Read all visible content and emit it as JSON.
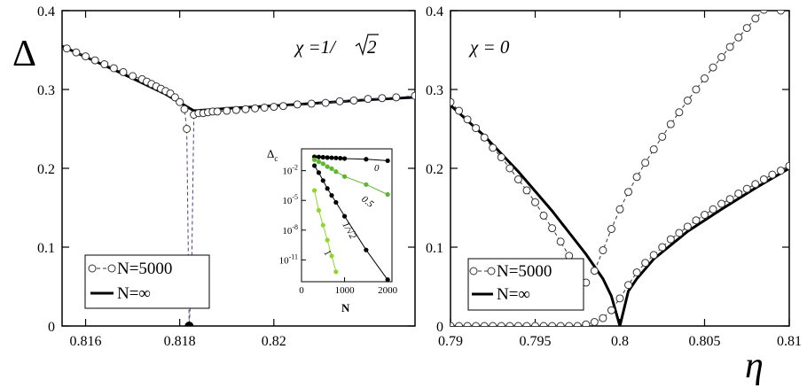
{
  "y_axis_label": "Δ",
  "x_axis_label": "η",
  "chart_data": [
    {
      "type": "line",
      "panel": "left",
      "annotation_prefix": "χ =1/",
      "annotation_radicand": "2",
      "xlim": [
        0.8155,
        0.823
      ],
      "ylim": [
        0,
        0.4
      ],
      "xticks": [
        0.816,
        0.818,
        0.82
      ],
      "xtick_labels": [
        "0.816",
        "0.818",
        "0.82"
      ],
      "yticks": [
        0,
        0.1,
        0.2,
        0.3,
        0.4
      ],
      "ytick_labels": [
        "0",
        "0.1",
        "0.2",
        "0.3",
        "0.4"
      ],
      "legend": [
        "N=5000",
        "N=∞"
      ],
      "series": [
        {
          "name": "N=∞",
          "style": "solid-thick",
          "x": [
            0.8155,
            0.8162,
            0.817,
            0.8177,
            0.8183,
            0.819,
            0.8205,
            0.822,
            0.823
          ],
          "y": [
            0.355,
            0.336,
            0.314,
            0.294,
            0.273,
            0.276,
            0.281,
            0.287,
            0.29
          ]
        },
        {
          "name": "N=5000",
          "style": "dashed-markers",
          "x": [
            0.8156,
            0.8158,
            0.816,
            0.8162,
            0.8164,
            0.8166,
            0.8168,
            0.817,
            0.8172,
            0.8173,
            0.8174,
            0.8175,
            0.8176,
            0.8177,
            0.8178,
            0.8179,
            0.818,
            0.8181,
            0.81815,
            0.8182,
            0.81825,
            0.8183,
            0.8184,
            0.8185,
            0.8186,
            0.8187,
            0.8188,
            0.819,
            0.8192,
            0.8194,
            0.8196,
            0.8198,
            0.82,
            0.8202,
            0.8205,
            0.8208,
            0.8211,
            0.8214,
            0.8217,
            0.822,
            0.8223,
            0.8226,
            0.823
          ],
          "y": [
            0.352,
            0.347,
            0.342,
            0.337,
            0.332,
            0.327,
            0.322,
            0.317,
            0.313,
            0.31,
            0.307,
            0.304,
            0.301,
            0.298,
            0.295,
            0.29,
            0.284,
            0.275,
            0.25,
            0.0,
            0.055,
            0.268,
            0.27,
            0.27,
            0.271,
            0.272,
            0.272,
            0.273,
            0.274,
            0.275,
            0.276,
            0.277,
            0.278,
            0.279,
            0.281,
            0.282,
            0.283,
            0.285,
            0.286,
            0.288,
            0.289,
            0.29,
            0.292
          ]
        }
      ],
      "critical_point": {
        "x": 0.8182,
        "y": 0.0
      }
    },
    {
      "type": "line",
      "panel": "right",
      "annotation": "χ = 0",
      "xlim": [
        0.79,
        0.81
      ],
      "ylim": [
        0,
        0.4
      ],
      "xticks": [
        0.79,
        0.795,
        0.8,
        0.805,
        0.81
      ],
      "xtick_labels": [
        "0.79",
        "0.795",
        "0.8",
        "0.805",
        "0.81"
      ],
      "yticks": [
        0,
        0.1,
        0.2,
        0.3,
        0.4
      ],
      "ytick_labels": [
        "0",
        "0.1",
        "0.2",
        "0.3",
        "0.4"
      ],
      "legend": [
        "N=5000",
        "N=∞"
      ],
      "series": [
        {
          "name": "N=∞ (left branch)",
          "style": "solid-thick",
          "x": [
            0.79,
            0.792,
            0.794,
            0.796,
            0.798,
            0.799,
            0.7995,
            0.8
          ],
          "y": [
            0.28,
            0.241,
            0.196,
            0.146,
            0.091,
            0.06,
            0.038,
            0.0
          ]
        },
        {
          "name": "N=∞ (right branch)",
          "style": "solid-thick",
          "x": [
            0.8,
            0.8005,
            0.801,
            0.802,
            0.804,
            0.806,
            0.808,
            0.81
          ],
          "y": [
            0.0,
            0.044,
            0.06,
            0.085,
            0.12,
            0.148,
            0.175,
            0.2
          ]
        },
        {
          "name": "N=5000 (descending)",
          "style": "dashed-markers",
          "x": [
            0.79,
            0.7905,
            0.791,
            0.7915,
            0.792,
            0.7925,
            0.793,
            0.7935,
            0.794,
            0.7945,
            0.795,
            0.7955,
            0.796,
            0.7965,
            0.797,
            0.7975,
            0.798
          ],
          "y": [
            0.284,
            0.273,
            0.262,
            0.251,
            0.239,
            0.226,
            0.214,
            0.2,
            0.186,
            0.172,
            0.157,
            0.14,
            0.124,
            0.107,
            0.089,
            0.07,
            0.055
          ]
        },
        {
          "name": "N=5000 (ascending)",
          "style": "dashed-markers",
          "x": [
            0.7985,
            0.799,
            0.7995,
            0.8,
            0.8005,
            0.801,
            0.8015,
            0.802,
            0.8025,
            0.803,
            0.8035,
            0.804,
            0.8045,
            0.805,
            0.8055,
            0.806,
            0.8065,
            0.807,
            0.8075,
            0.808,
            0.8085,
            0.809,
            0.8095
          ],
          "y": [
            0.07,
            0.096,
            0.123,
            0.148,
            0.17,
            0.189,
            0.207,
            0.224,
            0.24,
            0.256,
            0.271,
            0.286,
            0.3,
            0.314,
            0.328,
            0.341,
            0.354,
            0.366,
            0.378,
            0.39,
            0.401,
            0.412,
            0.4
          ]
        },
        {
          "name": "N=5000 (zero then rising)",
          "style": "dashed-markers",
          "x": [
            0.79,
            0.7905,
            0.791,
            0.7915,
            0.792,
            0.7925,
            0.793,
            0.7935,
            0.794,
            0.7945,
            0.795,
            0.7955,
            0.796,
            0.7965,
            0.797,
            0.7975,
            0.798,
            0.7985,
            0.799,
            0.7995,
            0.8,
            0.8005,
            0.801,
            0.8015,
            0.802,
            0.8025,
            0.803,
            0.8035,
            0.804,
            0.8045,
            0.805,
            0.8055,
            0.806,
            0.8065,
            0.807,
            0.8075,
            0.808,
            0.8085,
            0.809,
            0.8095,
            0.81
          ],
          "y": [
            0,
            0,
            0,
            0,
            0,
            0,
            0,
            0,
            0,
            0,
            0,
            0,
            0,
            0,
            0,
            0,
            0.002,
            0.005,
            0.01,
            0.02,
            0.035,
            0.052,
            0.068,
            0.08,
            0.09,
            0.1,
            0.11,
            0.118,
            0.126,
            0.134,
            0.141,
            0.148,
            0.155,
            0.161,
            0.168,
            0.174,
            0.18,
            0.186,
            0.192,
            0.197,
            0.203
          ]
        }
      ]
    },
    {
      "type": "line",
      "panel": "inset",
      "ylabel": "Δc",
      "xlabel": "N",
      "xlim": [
        0,
        2100
      ],
      "xticks": [
        0,
        1000,
        2000
      ],
      "xtick_labels": [
        "0",
        "1000",
        "2000"
      ],
      "ylog_exponents": [
        -2,
        -5,
        -8,
        -11
      ],
      "ytick_base": "10",
      "series": [
        {
          "name": "0",
          "color": "#000000",
          "x": [
            300,
            400,
            500,
            600,
            700,
            800,
            900,
            1000,
            1500,
            2000
          ],
          "log10y": [
            -0.6,
            -0.62,
            -0.65,
            -0.68,
            -0.7,
            -0.72,
            -0.75,
            -0.78,
            -0.85,
            -1.0
          ]
        },
        {
          "name": "0.5",
          "color": "#5cb82e",
          "x": [
            300,
            400,
            500,
            600,
            700,
            800,
            1000,
            1500,
            2000
          ],
          "log10y": [
            -0.9,
            -1.1,
            -1.3,
            -1.6,
            -1.8,
            -2.1,
            -2.6,
            -3.4,
            -4.4
          ]
        },
        {
          "name": "1/√2",
          "color": "#000000",
          "x": [
            300,
            400,
            500,
            600,
            700,
            800,
            1000,
            1500,
            2000
          ],
          "log10y": [
            -1.5,
            -2.2,
            -3.0,
            -3.8,
            -4.5,
            -5.2,
            -6.6,
            -10.0,
            -13.0
          ]
        },
        {
          "name": "1",
          "color": "#8fd62a",
          "x": [
            300,
            400,
            500,
            600,
            700,
            800
          ],
          "log10y": [
            -4.0,
            -6.0,
            -7.5,
            -9.0,
            -10.6,
            -12.2
          ]
        }
      ],
      "series_labels": [
        "0",
        "0.5",
        "1/√2",
        "1"
      ]
    }
  ]
}
